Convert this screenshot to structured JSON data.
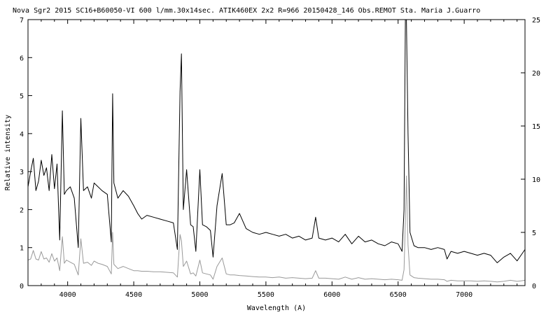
{
  "chart_data": {
    "type": "line",
    "title": "Nova Sgr2 2015  SC16+B60050-VI  600 l/mm.30x14sec. ATIK460EX  2x2 R=966  20150428_146 Obs.REMOT Sta. Maria  J.Guarro",
    "xlabel": "Wavelength (A)",
    "ylabel": "Relative intensity",
    "xlim": [
      3700,
      7460
    ],
    "ylim": [
      0,
      7
    ],
    "y2lim": [
      0,
      25
    ],
    "grid": false,
    "x_ticks": [
      "4000",
      "4500",
      "5000",
      "5500",
      "6000",
      "6500",
      "7000"
    ],
    "y_ticks": [
      "0",
      "1",
      "2",
      "3",
      "4",
      "5",
      "6",
      "7"
    ],
    "y2_ticks": [
      "0",
      "5",
      "10",
      "15",
      "20",
      "25"
    ],
    "series": [
      {
        "axis": "left",
        "color": "#000000",
        "x": [
          3700,
          3720,
          3740,
          3760,
          3780,
          3800,
          3820,
          3840,
          3860,
          3880,
          3900,
          3920,
          3940,
          3960,
          3975,
          3990,
          4020,
          4050,
          4080,
          4100,
          4120,
          4150,
          4180,
          4200,
          4230,
          4260,
          4300,
          4330,
          4340,
          4350,
          4380,
          4420,
          4460,
          4500,
          4530,
          4560,
          4600,
          4650,
          4700,
          4750,
          4800,
          4830,
          4850,
          4861,
          4875,
          4900,
          4930,
          4950,
          4970,
          5000,
          5020,
          5050,
          5080,
          5100,
          5130,
          5169,
          5200,
          5230,
          5260,
          5300,
          5350,
          5400,
          5450,
          5500,
          5550,
          5600,
          5650,
          5700,
          5750,
          5800,
          5850,
          5876,
          5900,
          5950,
          6000,
          6050,
          6100,
          6150,
          6200,
          6250,
          6300,
          6350,
          6400,
          6450,
          6500,
          6530,
          6545,
          6555,
          6563,
          6575,
          6590,
          6620,
          6650,
          6700,
          6750,
          6800,
          6850,
          6870,
          6900,
          6950,
          7000,
          7050,
          7100,
          7150,
          7200,
          7250,
          7300,
          7350,
          7400,
          7430,
          7460
        ],
        "values": [
          2.6,
          3.0,
          3.35,
          2.5,
          2.75,
          3.3,
          2.9,
          3.1,
          2.5,
          3.45,
          2.55,
          3.2,
          1.2,
          4.6,
          2.4,
          2.5,
          2.6,
          2.3,
          1.0,
          4.4,
          2.5,
          2.6,
          2.3,
          2.7,
          2.6,
          2.5,
          2.4,
          1.15,
          5.05,
          2.7,
          2.3,
          2.5,
          2.35,
          2.1,
          1.9,
          1.75,
          1.85,
          1.8,
          1.75,
          1.7,
          1.65,
          0.95,
          5.1,
          6.1,
          2.0,
          3.05,
          1.6,
          1.55,
          0.9,
          3.05,
          1.6,
          1.55,
          1.45,
          0.75,
          2.1,
          2.95,
          1.6,
          1.6,
          1.65,
          1.9,
          1.5,
          1.4,
          1.35,
          1.4,
          1.35,
          1.3,
          1.35,
          1.25,
          1.3,
          1.2,
          1.25,
          1.8,
          1.25,
          1.2,
          1.25,
          1.15,
          1.35,
          1.1,
          1.3,
          1.15,
          1.2,
          1.1,
          1.05,
          1.15,
          1.1,
          0.9,
          2.0,
          7.5,
          8.0,
          4.0,
          1.4,
          1.05,
          1.0,
          1.0,
          0.95,
          1.0,
          0.95,
          0.7,
          0.9,
          0.85,
          0.9,
          0.85,
          0.8,
          0.85,
          0.8,
          0.6,
          0.75,
          0.85,
          0.65,
          0.8,
          0.95
        ]
      },
      {
        "axis": "right",
        "color": "#999999",
        "x": [
          3700,
          3720,
          3740,
          3760,
          3780,
          3800,
          3820,
          3840,
          3860,
          3880,
          3900,
          3920,
          3940,
          3960,
          3975,
          3990,
          4020,
          4050,
          4080,
          4100,
          4120,
          4150,
          4180,
          4200,
          4230,
          4260,
          4300,
          4330,
          4340,
          4350,
          4380,
          4420,
          4460,
          4500,
          4530,
          4560,
          4600,
          4650,
          4700,
          4750,
          4800,
          4830,
          4850,
          4861,
          4875,
          4900,
          4930,
          4950,
          4970,
          5000,
          5020,
          5050,
          5080,
          5100,
          5130,
          5169,
          5200,
          5230,
          5260,
          5300,
          5350,
          5400,
          5450,
          5500,
          5550,
          5600,
          5650,
          5700,
          5750,
          5800,
          5850,
          5876,
          5900,
          5950,
          6000,
          6050,
          6100,
          6150,
          6200,
          6250,
          6300,
          6350,
          6400,
          6450,
          6500,
          6530,
          6545,
          6555,
          6563,
          6575,
          6590,
          6620,
          6650,
          6700,
          6750,
          6800,
          6850,
          6870,
          6900,
          6950,
          7000,
          7050,
          7100,
          7150,
          7200,
          7250,
          7300,
          7350,
          7400,
          7430,
          7460
        ],
        "values": [
          2.4,
          2.5,
          3.3,
          2.5,
          2.4,
          3.2,
          2.5,
          2.6,
          2.2,
          3.0,
          2.3,
          2.6,
          1.4,
          4.6,
          2.1,
          2.4,
          2.2,
          2.0,
          1.0,
          4.4,
          2.1,
          2.2,
          1.9,
          2.3,
          2.1,
          2.0,
          1.8,
          1.1,
          5.0,
          2.0,
          1.6,
          1.8,
          1.6,
          1.4,
          1.4,
          1.35,
          1.35,
          1.3,
          1.3,
          1.25,
          1.2,
          0.8,
          4.8,
          4.2,
          1.8,
          2.3,
          1.1,
          1.2,
          0.9,
          2.4,
          1.2,
          1.1,
          1.0,
          0.6,
          1.8,
          2.6,
          1.1,
          1.0,
          1.0,
          0.95,
          0.9,
          0.85,
          0.8,
          0.8,
          0.75,
          0.8,
          0.7,
          0.75,
          0.7,
          0.65,
          0.7,
          1.4,
          0.7,
          0.7,
          0.65,
          0.6,
          0.8,
          0.6,
          0.75,
          0.6,
          0.65,
          0.6,
          0.55,
          0.6,
          0.55,
          0.5,
          1.5,
          6.0,
          10.3,
          3.8,
          1.0,
          0.75,
          0.7,
          0.65,
          0.6,
          0.6,
          0.55,
          0.4,
          0.5,
          0.45,
          0.45,
          0.45,
          0.4,
          0.45,
          0.4,
          0.35,
          0.4,
          0.5,
          0.4,
          0.45,
          0.5
        ]
      }
    ]
  }
}
